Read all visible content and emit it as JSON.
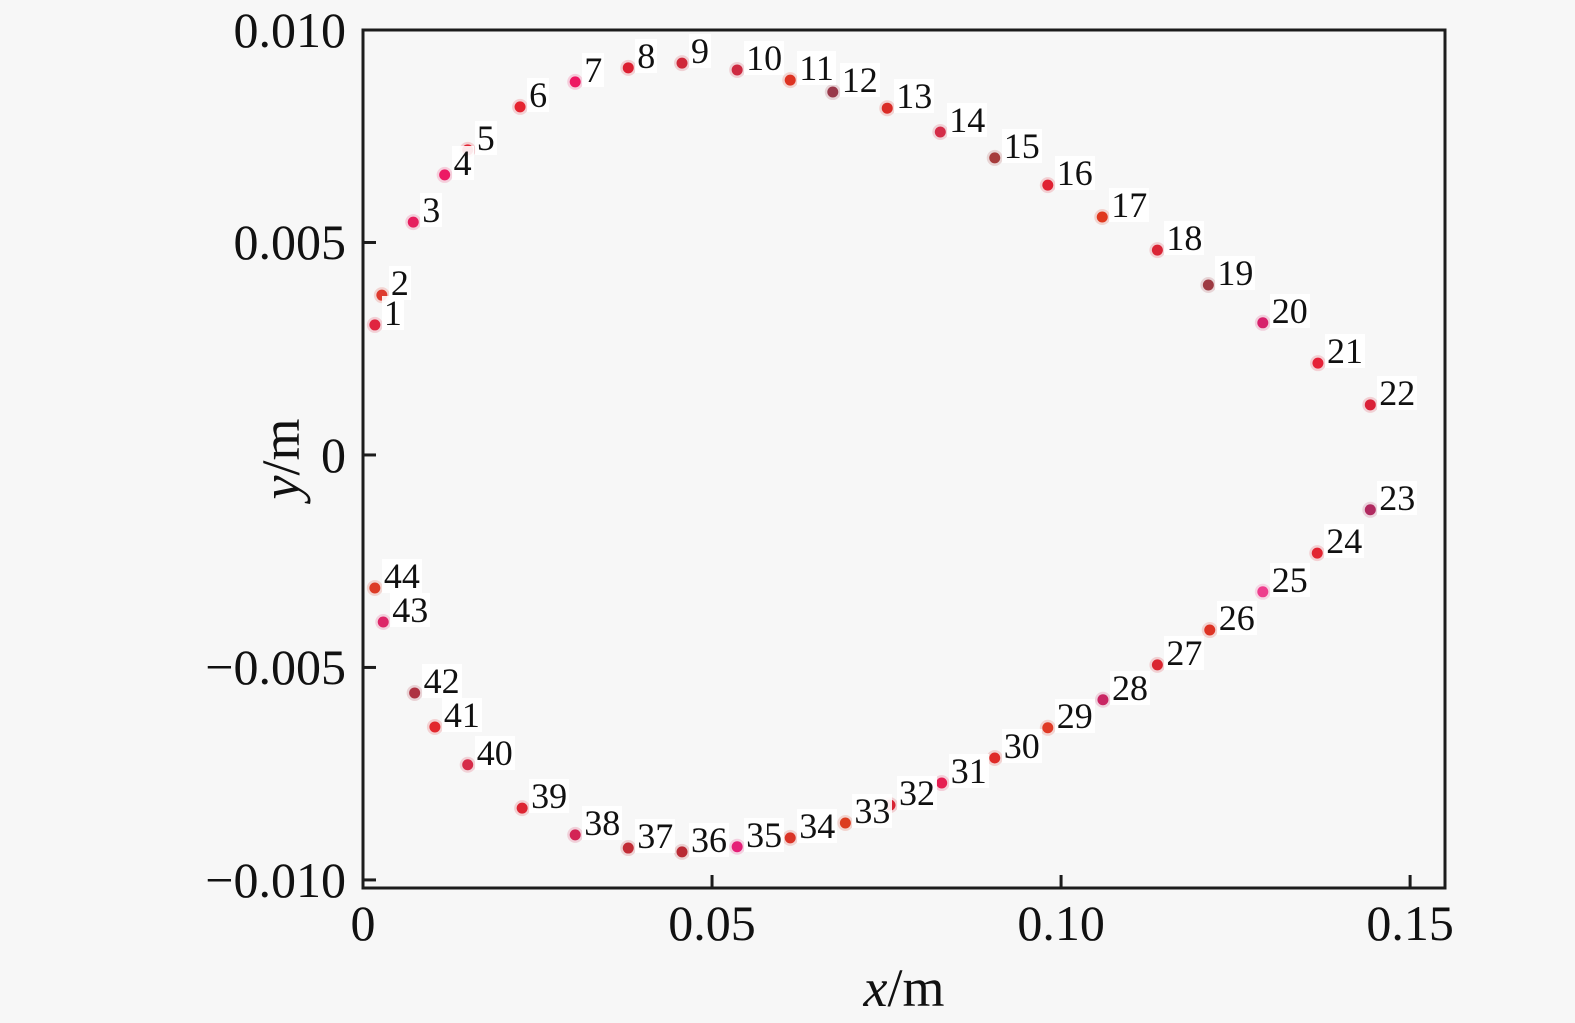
{
  "figure": {
    "background": "#f7f7f7",
    "text_color": "#111111",
    "spine_color": "#1c1c1c"
  },
  "chart_data": {
    "type": "scatter",
    "title": "",
    "xlabel": "x/m",
    "xlabel_var": "x",
    "xlabel_rest": "/m",
    "ylabel": "y/m",
    "ylabel_var": "y",
    "ylabel_rest": "/m",
    "xlim": [
      0,
      0.155
    ],
    "ylim": [
      -0.01019,
      0.01
    ],
    "grid": false,
    "legend": null,
    "x_ticks": [
      {
        "v": 0,
        "label": "0"
      },
      {
        "v": 0.05,
        "label": "0.05"
      },
      {
        "v": 0.1,
        "label": "0.10"
      },
      {
        "v": 0.15,
        "label": "0.15"
      }
    ],
    "y_ticks": [
      {
        "v": -0.01,
        "label": "−0.010"
      },
      {
        "v": -0.005,
        "label": "−0.005"
      },
      {
        "v": 0,
        "label": "0"
      },
      {
        "v": 0.005,
        "label": "0.005"
      },
      {
        "v": 0.01,
        "label": "0.010"
      }
    ],
    "points": [
      {
        "n": 1,
        "x": 0.0017,
        "y": 0.00306,
        "color": "#e02440"
      },
      {
        "n": 2,
        "x": 0.0027,
        "y": 0.00376,
        "color": "#de3a2e"
      },
      {
        "n": 3,
        "x": 0.0072,
        "y": 0.00548,
        "color": "#e61e5e"
      },
      {
        "n": 4,
        "x": 0.0117,
        "y": 0.00659,
        "color": "#ec1a64"
      },
      {
        "n": 5,
        "x": 0.015,
        "y": 0.00718,
        "color": "#e22433"
      },
      {
        "n": 6,
        "x": 0.0225,
        "y": 0.00819,
        "color": "#e52430"
      },
      {
        "n": 7,
        "x": 0.0304,
        "y": 0.00878,
        "color": "#ee1762"
      },
      {
        "n": 8,
        "x": 0.038,
        "y": 0.00911,
        "color": "#dc1f31"
      },
      {
        "n": 9,
        "x": 0.0457,
        "y": 0.00922,
        "color": "#cf2839"
      },
      {
        "n": 10,
        "x": 0.0536,
        "y": 0.00906,
        "color": "#ce2a42"
      },
      {
        "n": 11,
        "x": 0.0612,
        "y": 0.00882,
        "color": "#dd3322"
      },
      {
        "n": 12,
        "x": 0.0673,
        "y": 0.00854,
        "color": "#99394a"
      },
      {
        "n": 13,
        "x": 0.0751,
        "y": 0.00816,
        "color": "#da2b26"
      },
      {
        "n": 14,
        "x": 0.0827,
        "y": 0.0076,
        "color": "#d42d49"
      },
      {
        "n": 15,
        "x": 0.0905,
        "y": 0.00699,
        "color": "#a63b3b"
      },
      {
        "n": 16,
        "x": 0.0981,
        "y": 0.00635,
        "color": "#e02133"
      },
      {
        "n": 17,
        "x": 0.1059,
        "y": 0.0056,
        "color": "#e0391f"
      },
      {
        "n": 18,
        "x": 0.1138,
        "y": 0.00482,
        "color": "#da2536"
      },
      {
        "n": 19,
        "x": 0.1211,
        "y": 0.004,
        "color": "#9e3a42"
      },
      {
        "n": 20,
        "x": 0.1289,
        "y": 0.00311,
        "color": "#d7206b"
      },
      {
        "n": 21,
        "x": 0.1368,
        "y": 0.00216,
        "color": "#e52238"
      },
      {
        "n": 22,
        "x": 0.1443,
        "y": 0.00118,
        "color": "#da2138"
      },
      {
        "n": 23,
        "x": 0.1443,
        "y": -0.00129,
        "color": "#b02a60"
      },
      {
        "n": 24,
        "x": 0.1367,
        "y": -0.00231,
        "color": "#e22431"
      },
      {
        "n": 25,
        "x": 0.1289,
        "y": -0.00322,
        "color": "#ee3d8d"
      },
      {
        "n": 26,
        "x": 0.1213,
        "y": -0.00412,
        "color": "#dd3425"
      },
      {
        "n": 27,
        "x": 0.1138,
        "y": -0.00494,
        "color": "#da2530"
      },
      {
        "n": 28,
        "x": 0.106,
        "y": -0.00576,
        "color": "#c92563"
      },
      {
        "n": 29,
        "x": 0.0981,
        "y": -0.00642,
        "color": "#e03a26"
      },
      {
        "n": 30,
        "x": 0.0905,
        "y": -0.00713,
        "color": "#df2a28"
      },
      {
        "n": 31,
        "x": 0.0829,
        "y": -0.00772,
        "color": "#e61e52"
      },
      {
        "n": 32,
        "x": 0.0755,
        "y": -0.00824,
        "color": "#d82434"
      },
      {
        "n": 33,
        "x": 0.0691,
        "y": -0.00866,
        "color": "#dc3d20"
      },
      {
        "n": 34,
        "x": 0.0612,
        "y": -0.00901,
        "color": "#da3427"
      },
      {
        "n": 35,
        "x": 0.0536,
        "y": -0.00922,
        "color": "#e51f78"
      },
      {
        "n": 36,
        "x": 0.0457,
        "y": -0.00934,
        "color": "#b92a34"
      },
      {
        "n": 37,
        "x": 0.038,
        "y": -0.00925,
        "color": "#c22c36"
      },
      {
        "n": 38,
        "x": 0.0304,
        "y": -0.00894,
        "color": "#d32355"
      },
      {
        "n": 39,
        "x": 0.0228,
        "y": -0.00831,
        "color": "#dd2532"
      },
      {
        "n": 40,
        "x": 0.015,
        "y": -0.00729,
        "color": "#d62a48"
      },
      {
        "n": 41,
        "x": 0.0103,
        "y": -0.0064,
        "color": "#e2282e"
      },
      {
        "n": 42,
        "x": 0.0074,
        "y": -0.0056,
        "color": "#ae3342"
      },
      {
        "n": 43,
        "x": 0.0029,
        "y": -0.00393,
        "color": "#dd2668"
      },
      {
        "n": 44,
        "x": 0.0017,
        "y": -0.00313,
        "color": "#dd3b26"
      }
    ]
  }
}
